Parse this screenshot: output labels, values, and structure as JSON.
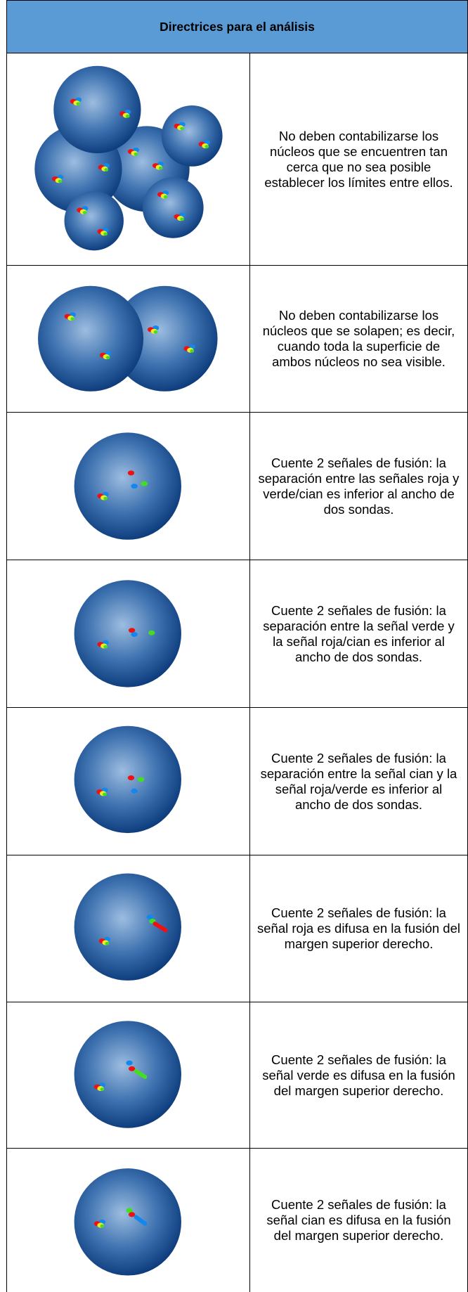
{
  "header": {
    "title": "Directrices para el análisis"
  },
  "rows": [
    {
      "text": "No deben contabilizarse los núcleos que se encuentren tan cerca que no sea posible establecer los límites entre ellos."
    },
    {
      "text": "No deben contabilizarse los núcleos que se solapen; es decir, cuando toda la superficie de ambos núcleos no sea visible."
    },
    {
      "text": "Cuente 2 señales de fusión: la separación entre las señales roja y verde/cian es inferior al ancho de dos sondas."
    },
    {
      "text": "Cuente 2 señales de fusión: la separación entre la señal verde y la señal roja/cian es inferior al ancho de dos sondas."
    },
    {
      "text": "Cuente 2 señales de fusión: la separación entre la señal cian y la señal roja/verde es inferior al ancho de dos sondas."
    },
    {
      "text": "Cuente 2 señales de fusión: la señal roja es difusa en la fusión del margen superior derecho."
    },
    {
      "text": "Cuente 2 señales de fusión: la señal verde es difusa en la fusión del margen superior derecho."
    },
    {
      "text": "Cuente 2 señales de fusión: la señal cian es difusa en la fusión del margen superior derecho."
    }
  ]
}
